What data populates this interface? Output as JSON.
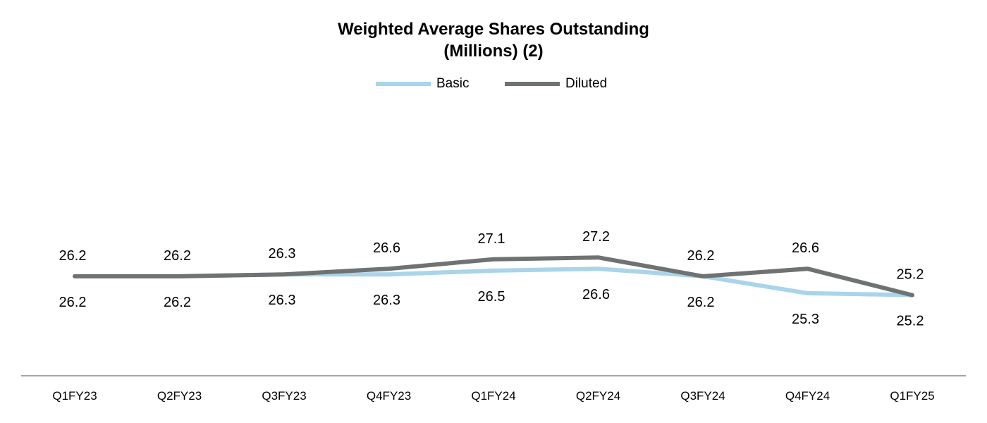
{
  "chart_data": {
    "type": "line",
    "title": "Weighted Average Shares Outstanding",
    "subtitle": "(Millions) (2)",
    "categories": [
      "Q1FY23",
      "Q2FY23",
      "Q3FY23",
      "Q4FY23",
      "Q1FY24",
      "Q2FY24",
      "Q3FY24",
      "Q4FY24",
      "Q1FY25"
    ],
    "series": [
      {
        "name": "Basic",
        "color": "#a9d4ea",
        "values": [
          26.2,
          26.2,
          26.3,
          26.3,
          26.5,
          26.6,
          26.2,
          25.3,
          25.2
        ]
      },
      {
        "name": "Diluted",
        "color": "#6e7372",
        "values": [
          26.2,
          26.2,
          26.3,
          26.6,
          27.1,
          27.2,
          26.2,
          26.6,
          25.2
        ]
      }
    ],
    "ylim": [
      22,
      30
    ],
    "grid": false,
    "legend_position": "top-center",
    "axis_color": "#a6a6a6"
  }
}
